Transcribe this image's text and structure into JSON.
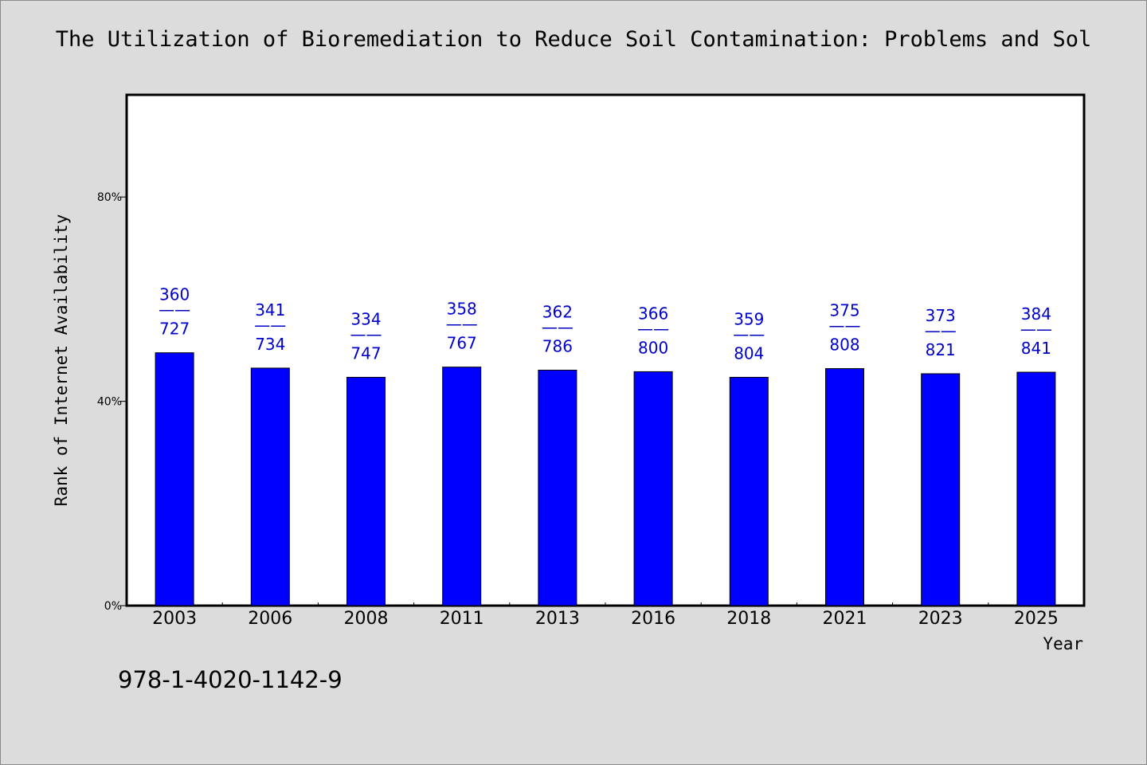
{
  "chart_data": {
    "type": "bar",
    "title": "The Utilization of Bioremediation to Reduce Soil Contamination: Problems and Sol",
    "xlabel": "Year",
    "ylabel": "Rank of Internet Availability",
    "ylim": [
      0,
      1
    ],
    "yticks": [
      "0%",
      "40%",
      "80%"
    ],
    "ytick_values": [
      0,
      0.4,
      0.8
    ],
    "categories": [
      "2003",
      "2006",
      "2008",
      "2011",
      "2013",
      "2016",
      "2018",
      "2021",
      "2023",
      "2025"
    ],
    "series": [
      {
        "values": [
          0.495,
          0.465,
          0.447,
          0.467,
          0.461,
          0.458,
          0.447,
          0.464,
          0.454,
          0.457
        ],
        "ranks": [
          360,
          341,
          334,
          358,
          362,
          366,
          359,
          375,
          373,
          384
        ],
        "totals": [
          727,
          734,
          747,
          767,
          786,
          800,
          804,
          808,
          821,
          841
        ],
        "color": "#0000ff"
      }
    ],
    "label_separator": "——",
    "label_color": "#0000cc",
    "grid": false
  },
  "footer": {
    "isbn": "978-1-4020-1142-9"
  },
  "colors": {
    "background": "#dcdcdc",
    "plot_area": "#ffffff",
    "bar": "#0000ff",
    "label": "#0000cc"
  }
}
